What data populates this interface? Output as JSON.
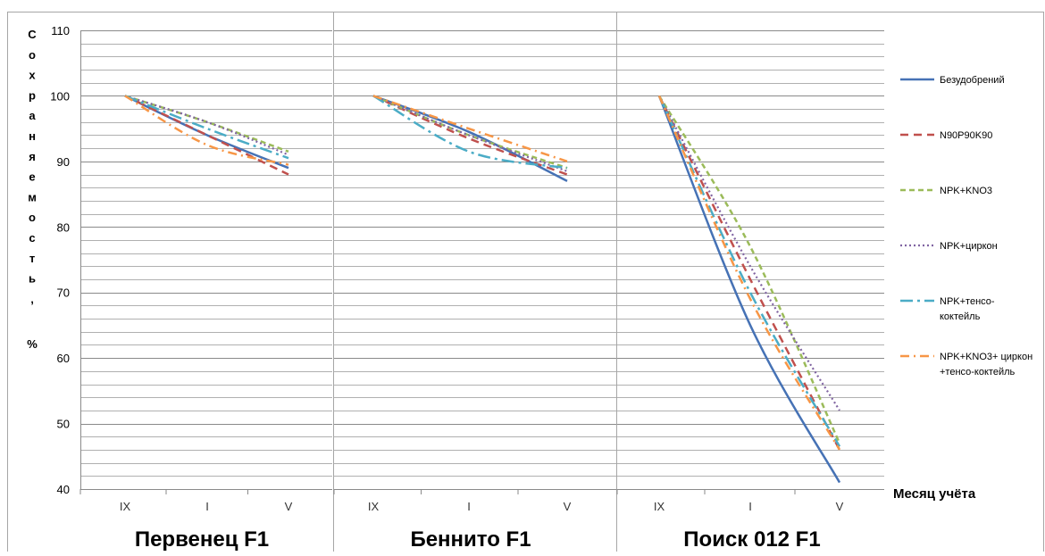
{
  "figure": {
    "ylabel": "Сохраняемость, %",
    "xlabel": "Месяц учёта"
  },
  "chart_data": {
    "type": "line",
    "ylim": [
      40,
      110
    ],
    "y_ticks": [
      40,
      50,
      60,
      70,
      80,
      90,
      100,
      110
    ],
    "grid": true,
    "legend_position": "right",
    "series_styles": [
      {
        "name": "Безудобрений",
        "color": "#4672b5",
        "dash": "",
        "width": 2.5
      },
      {
        "name": "N90P90K90",
        "color": "#c0504d",
        "dash": "9 6",
        "width": 2.5
      },
      {
        "name": "NPK+KNO3",
        "color": "#9bbb59",
        "dash": "6 4",
        "width": 2.5
      },
      {
        "name": "NPK+циркон",
        "color": "#8064a2",
        "dash": "2 3",
        "width": 2.2
      },
      {
        "name": "NPK+тенсо-коктейль",
        "color": "#4bacc6",
        "dash": "14 5 3 5",
        "width": 2.5
      },
      {
        "name": "NPK+KNO3+ циркон +тенсо-коктейль",
        "color": "#f79646",
        "dash": "10 5 2 5",
        "width": 2.5
      }
    ],
    "panels": [
      {
        "title": "Первенец F1",
        "categories": [
          "IX",
          "I",
          "V"
        ],
        "series": [
          {
            "name": "Безудобрений",
            "values": [
              100,
              94,
              89
            ]
          },
          {
            "name": "N90P90K90",
            "values": [
              100,
              94,
              88
            ]
          },
          {
            "name": "NPK+KNO3",
            "values": [
              100,
              96,
              91.5
            ]
          },
          {
            "name": "NPK+циркон",
            "values": [
              100,
              96,
              91
            ]
          },
          {
            "name": "NPK+тенсо-коктейль",
            "values": [
              100,
              95,
              90.5
            ]
          },
          {
            "name": "NPK+KNO3+ циркон +тенсо-коктейль",
            "values": [
              100,
              92.5,
              89.5
            ]
          }
        ]
      },
      {
        "title": "Беннито F1",
        "categories": [
          "IX",
          "I",
          "V"
        ],
        "series": [
          {
            "name": "Безудобрений",
            "values": [
              100,
              94.5,
              87
            ]
          },
          {
            "name": "N90P90K90",
            "values": [
              100,
              93.5,
              88
            ]
          },
          {
            "name": "NPK+KNO3",
            "values": [
              100,
              94,
              89
            ]
          },
          {
            "name": "NPK+циркон",
            "values": [
              100,
              94,
              88.5
            ]
          },
          {
            "name": "NPK+тенсо-коктейль",
            "values": [
              100,
              91.5,
              89
            ]
          },
          {
            "name": "NPK+KNO3+ циркон +тенсо-коктейль",
            "values": [
              100,
              95,
              90
            ]
          }
        ]
      },
      {
        "title": "Поиск 012 F1",
        "categories": [
          "IX",
          "I",
          "V"
        ],
        "series": [
          {
            "name": "Безудобрений",
            "values": [
              100,
              65,
              41
            ]
          },
          {
            "name": "N90P90K90",
            "values": [
              100,
              72,
              46
            ]
          },
          {
            "name": "NPK+KNO3",
            "values": [
              100,
              77,
              47
            ]
          },
          {
            "name": "NPK+циркон",
            "values": [
              100,
              74,
              52
            ]
          },
          {
            "name": "NPK+тенсо-коктейль",
            "values": [
              100,
              70,
              46.5
            ]
          },
          {
            "name": "NPK+KNO3+ циркон +тенсо-коктейль",
            "values": [
              100,
              69,
              46
            ]
          }
        ]
      }
    ],
    "legend": [
      {
        "label": "Безудобрений"
      },
      {
        "label": "N90P90K90"
      },
      {
        "label": "NPK+KNO3"
      },
      {
        "label": "NPK+циркон"
      },
      {
        "label": "NPK+тенсо-",
        "label2": "коктейль"
      },
      {
        "label": "NPK+KNO3+ циркон",
        "label2": "+тенсо-коктейль"
      }
    ]
  }
}
